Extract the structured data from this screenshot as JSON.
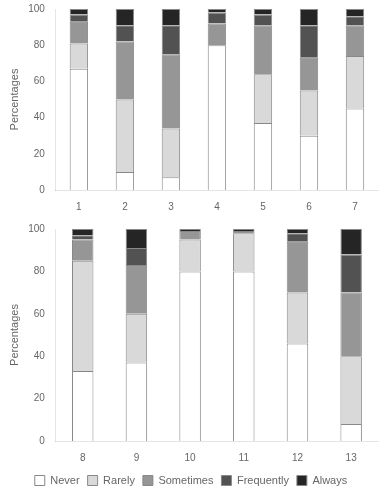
{
  "chart_data": [
    {
      "type": "bar",
      "stacked": true,
      "categories": [
        "1",
        "2",
        "3",
        "4",
        "5",
        "6",
        "7"
      ],
      "series": [
        {
          "name": "Never",
          "color": "#ffffff",
          "values": [
            67,
            10,
            7,
            80,
            37,
            30,
            45
          ]
        },
        {
          "name": "Rarely",
          "color": "#d9d9d9",
          "values": [
            14,
            40,
            27,
            0,
            27,
            25,
            29
          ]
        },
        {
          "name": "Sometimes",
          "color": "#969696",
          "values": [
            12,
            32,
            41,
            12,
            27,
            18,
            17
          ]
        },
        {
          "name": "Frequently",
          "color": "#525252",
          "values": [
            4,
            9,
            16,
            6,
            6,
            18,
            5
          ]
        },
        {
          "name": "Always",
          "color": "#252525",
          "values": [
            3,
            9,
            9,
            2,
            3,
            9,
            4
          ]
        }
      ],
      "ylabel": "Percentages",
      "ylim": [
        0,
        100
      ],
      "yticks": [
        0,
        20,
        40,
        60,
        80,
        100
      ],
      "grid": false
    },
    {
      "type": "bar",
      "stacked": true,
      "categories": [
        "8",
        "9",
        "10",
        "11",
        "12",
        "13"
      ],
      "series": [
        {
          "name": "Never",
          "color": "#ffffff",
          "values": [
            33,
            37,
            80,
            80,
            46,
            8
          ]
        },
        {
          "name": "Rarely",
          "color": "#d9d9d9",
          "values": [
            52,
            23,
            15,
            18,
            24,
            32
          ]
        },
        {
          "name": "Sometimes",
          "color": "#969696",
          "values": [
            10,
            23,
            4,
            1,
            24,
            30
          ]
        },
        {
          "name": "Frequently",
          "color": "#525252",
          "values": [
            2,
            8,
            0,
            0,
            4,
            18
          ]
        },
        {
          "name": "Always",
          "color": "#252525",
          "values": [
            3,
            9,
            1,
            1,
            2,
            12
          ]
        }
      ],
      "ylabel": "Percentages",
      "ylim": [
        0,
        100
      ],
      "yticks": [
        0,
        20,
        40,
        60,
        80,
        100
      ],
      "grid": false,
      "legend": "bottom"
    }
  ]
}
